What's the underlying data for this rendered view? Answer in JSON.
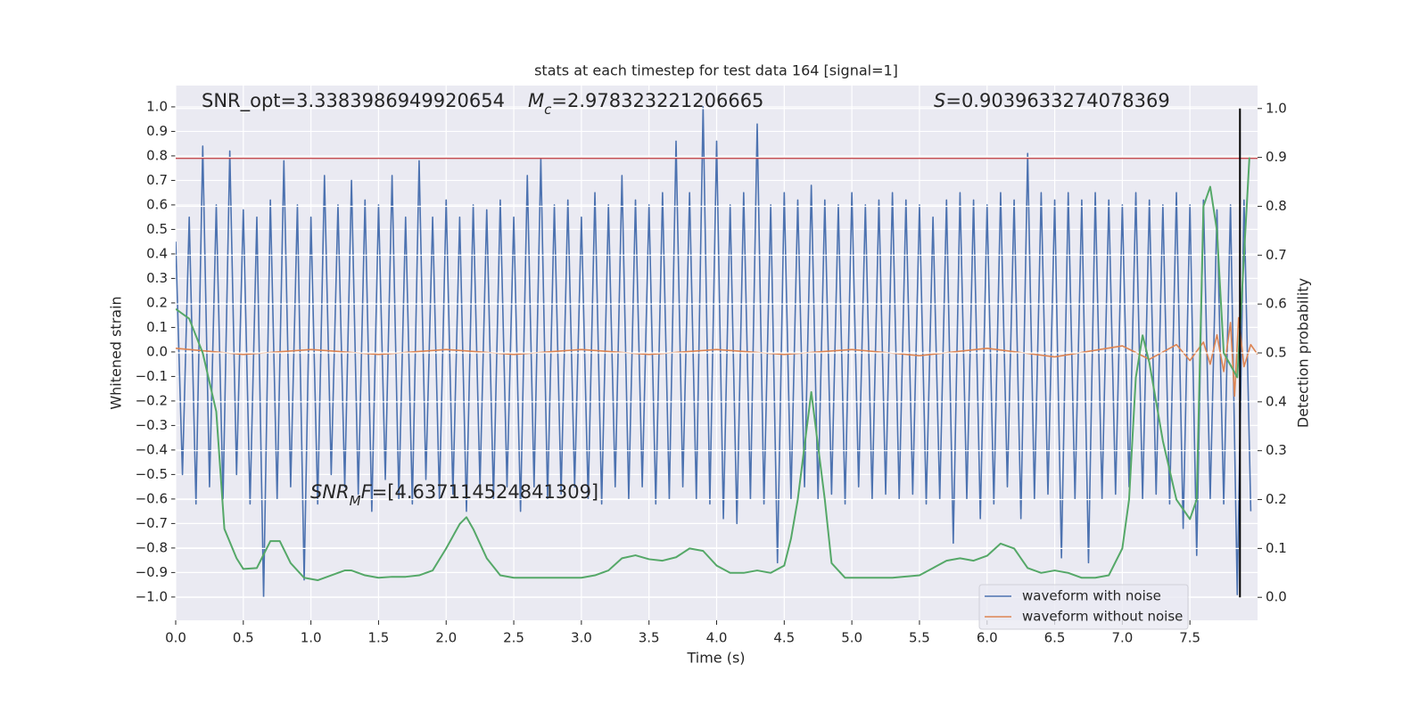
{
  "chart_data": {
    "type": "line",
    "title": "stats at each timestep for test data 164 [signal=1]",
    "xlabel": "Time (s)",
    "ylabel": "Whitened strain",
    "y2label": "Detection probability",
    "annotations": [
      {
        "parts": [
          {
            "text": "SNR_opt=3.3383986949920654"
          }
        ]
      },
      {
        "parts": [
          {
            "text": "M",
            "italic": true
          },
          {
            "text": "c",
            "italic": true,
            "sub": true
          },
          {
            "text": "=2.978323221206665"
          }
        ]
      },
      {
        "parts": [
          {
            "text": "S",
            "italic": true
          },
          {
            "text": "=0.9039633274078369"
          }
        ]
      },
      {
        "parts": [
          {
            "text": "SNR",
            "italic": true
          },
          {
            "text": "M",
            "italic": true,
            "sub": true
          },
          {
            "text": "F",
            "italic": true
          },
          {
            "text": "=[4.637114524841309]"
          }
        ]
      }
    ],
    "xlim": [
      0,
      8
    ],
    "ylim": [
      -1.095,
      1.087
    ],
    "y2lim": [
      -0.047,
      1.047
    ],
    "grid": true,
    "legend": "lower right",
    "xticks": [
      {
        "value": 0,
        "label": "0.0"
      },
      {
        "value": 0.5,
        "label": "0.5"
      },
      {
        "value": 1,
        "label": "1.0"
      },
      {
        "value": 1.5,
        "label": "1.5"
      },
      {
        "value": 2,
        "label": "2.0"
      },
      {
        "value": 2.5,
        "label": "2.5"
      },
      {
        "value": 3,
        "label": "3.0"
      },
      {
        "value": 3.5,
        "label": "3.5"
      },
      {
        "value": 4,
        "label": "4.0"
      },
      {
        "value": 4.5,
        "label": "4.5"
      },
      {
        "value": 5,
        "label": "5.0"
      },
      {
        "value": 5.5,
        "label": "5.5"
      },
      {
        "value": 6,
        "label": "6.0"
      },
      {
        "value": 6.5,
        "label": "6.5"
      },
      {
        "value": 7,
        "label": "7.0"
      },
      {
        "value": 7.5,
        "label": "7.5"
      }
    ],
    "yticks": [
      {
        "value": -1,
        "label": "−1.0"
      },
      {
        "value": -0.9,
        "label": "−0.9"
      },
      {
        "value": -0.8,
        "label": "−0.8"
      },
      {
        "value": -0.7,
        "label": "−0.7"
      },
      {
        "value": -0.6,
        "label": "−0.6"
      },
      {
        "value": -0.5,
        "label": "−0.5"
      },
      {
        "value": -0.4,
        "label": "−0.4"
      },
      {
        "value": -0.3,
        "label": "−0.3"
      },
      {
        "value": -0.2,
        "label": "−0.2"
      },
      {
        "value": -0.1,
        "label": "−0.1"
      },
      {
        "value": 0,
        "label": "0.0"
      },
      {
        "value": 0.1,
        "label": "0.1"
      },
      {
        "value": 0.2,
        "label": "0.2"
      },
      {
        "value": 0.3,
        "label": "0.3"
      },
      {
        "value": 0.4,
        "label": "0.4"
      },
      {
        "value": 0.5,
        "label": "0.5"
      },
      {
        "value": 0.6,
        "label": "0.6"
      },
      {
        "value": 0.7,
        "label": "0.7"
      },
      {
        "value": 0.8,
        "label": "0.8"
      },
      {
        "value": 0.9,
        "label": "0.9"
      },
      {
        "value": 1,
        "label": "1.0"
      }
    ],
    "y2ticks": [
      {
        "value": 0,
        "label": "0.0"
      },
      {
        "value": 0.1,
        "label": "0.1"
      },
      {
        "value": 0.2,
        "label": "0.2"
      },
      {
        "value": 0.3,
        "label": "0.3"
      },
      {
        "value": 0.4,
        "label": "0.4"
      },
      {
        "value": 0.5,
        "label": "0.5"
      },
      {
        "value": 0.6,
        "label": "0.6"
      },
      {
        "value": 0.7,
        "label": "0.7"
      },
      {
        "value": 0.8,
        "label": "0.8"
      },
      {
        "value": 0.9,
        "label": "0.9"
      },
      {
        "value": 1,
        "label": "1.0"
      }
    ],
    "series": [
      {
        "name": "waveform with noise",
        "color": "#4c72b0",
        "x": [
          0,
          0.05,
          0.1,
          0.15,
          0.2,
          0.25,
          0.3,
          0.35,
          0.4,
          0.45,
          0.5,
          0.55,
          0.6,
          0.65,
          0.7,
          0.75,
          0.8,
          0.85,
          0.9,
          0.95,
          1,
          1.05,
          1.1,
          1.15,
          1.2,
          1.25,
          1.3,
          1.35,
          1.4,
          1.45,
          1.5,
          1.55,
          1.6,
          1.65,
          1.7,
          1.75,
          1.8,
          1.85,
          1.9,
          1.95,
          2,
          2.05,
          2.1,
          2.15,
          2.2,
          2.25,
          2.3,
          2.35,
          2.4,
          2.45,
          2.5,
          2.55,
          2.6,
          2.65,
          2.7,
          2.75,
          2.8,
          2.85,
          2.9,
          2.95,
          3,
          3.05,
          3.1,
          3.15,
          3.2,
          3.25,
          3.3,
          3.35,
          3.4,
          3.45,
          3.5,
          3.55,
          3.6,
          3.65,
          3.7,
          3.75,
          3.8,
          3.85,
          3.9,
          3.95,
          4,
          4.05,
          4.1,
          4.15,
          4.2,
          4.25,
          4.3,
          4.35,
          4.4,
          4.45,
          4.5,
          4.55,
          4.6,
          4.65,
          4.7,
          4.75,
          4.8,
          4.85,
          4.9,
          4.95,
          5,
          5.05,
          5.1,
          5.15,
          5.2,
          5.25,
          5.3,
          5.35,
          5.4,
          5.45,
          5.5,
          5.55,
          5.6,
          5.65,
          5.7,
          5.75,
          5.8,
          5.85,
          5.9,
          5.95,
          6,
          6.05,
          6.1,
          6.15,
          6.2,
          6.25,
          6.3,
          6.35,
          6.4,
          6.45,
          6.5,
          6.55,
          6.6,
          6.65,
          6.7,
          6.75,
          6.8,
          6.85,
          6.9,
          6.95,
          7,
          7.05,
          7.1,
          7.15,
          7.2,
          7.25,
          7.3,
          7.35,
          7.4,
          7.45,
          7.5,
          7.55,
          7.6,
          7.65,
          7.7,
          7.75,
          7.8,
          7.85,
          7.9,
          7.95
        ],
        "values": [
          0.45,
          -0.5,
          0.55,
          -0.62,
          0.84,
          -0.55,
          0.6,
          -0.6,
          0.82,
          -0.5,
          0.58,
          -0.62,
          0.55,
          -1.0,
          0.62,
          -0.6,
          0.78,
          -0.55,
          0.6,
          -0.93,
          0.55,
          -0.62,
          0.72,
          -0.5,
          0.6,
          -0.55,
          0.7,
          -0.58,
          0.62,
          -0.65,
          0.6,
          -0.52,
          0.72,
          -0.6,
          0.55,
          -0.62,
          0.78,
          -0.52,
          0.55,
          -0.6,
          0.62,
          -0.58,
          0.55,
          -0.65,
          0.6,
          -0.55,
          0.58,
          -0.6,
          0.62,
          -0.55,
          0.55,
          -0.65,
          0.72,
          -0.55,
          0.79,
          -0.6,
          0.6,
          -0.58,
          0.62,
          -0.55,
          0.55,
          -0.6,
          0.65,
          -0.62,
          0.6,
          -0.55,
          0.72,
          -0.6,
          0.62,
          -0.55,
          0.6,
          -0.62,
          0.65,
          -0.6,
          0.86,
          -0.55,
          0.65,
          -0.6,
          1.0,
          -0.62,
          0.86,
          -0.68,
          0.6,
          -0.7,
          0.65,
          -0.6,
          0.93,
          -0.62,
          0.6,
          -0.86,
          0.65,
          -0.6,
          0.62,
          -0.55,
          0.68,
          -0.6,
          0.62,
          -0.58,
          0.6,
          -0.62,
          0.65,
          -0.55,
          0.6,
          -0.6,
          0.62,
          -0.58,
          0.65,
          -0.6,
          0.62,
          -0.58,
          0.6,
          -0.62,
          0.55,
          -0.6,
          0.62,
          -0.78,
          0.65,
          -0.6,
          0.62,
          -0.68,
          0.6,
          -0.62,
          0.65,
          -0.55,
          0.62,
          -0.68,
          0.81,
          -0.6,
          0.65,
          -0.58,
          0.62,
          -0.84,
          0.65,
          -0.6,
          0.62,
          -0.86,
          0.65,
          -0.6,
          0.62,
          -0.58,
          0.6,
          -0.55,
          0.65,
          -0.6,
          0.62,
          -0.58,
          0.6,
          -0.62,
          0.65,
          -0.72,
          0.6,
          -0.83,
          0.62,
          -0.6,
          0.58,
          -0.62,
          0.6,
          -0.99,
          0.62,
          -0.65
        ]
      },
      {
        "name": "waveform without noise",
        "color": "#dd8452",
        "x": [
          0,
          0.5,
          1,
          1.5,
          2,
          2.5,
          3,
          3.5,
          4,
          4.5,
          5,
          5.5,
          6,
          6.5,
          7,
          7.2,
          7.4,
          7.5,
          7.6,
          7.65,
          7.7,
          7.75,
          7.8,
          7.83,
          7.86,
          7.9,
          7.95,
          8
        ],
        "values": [
          0.015,
          -0.01,
          0.01,
          -0.01,
          0.01,
          -0.01,
          0.01,
          -0.01,
          0.01,
          -0.01,
          0.01,
          -0.015,
          0.015,
          -0.02,
          0.025,
          -0.03,
          0.03,
          -0.035,
          0.04,
          -0.05,
          0.07,
          -0.08,
          0.12,
          -0.18,
          0.14,
          -0.06,
          0.03,
          -0.01
        ]
      },
      {
        "color": "#55a868",
        "axis": "y2",
        "x": [
          0,
          0.1,
          0.2,
          0.3,
          0.36,
          0.45,
          0.5,
          0.6,
          0.7,
          0.77,
          0.85,
          0.95,
          1.05,
          1.15,
          1.25,
          1.3,
          1.4,
          1.5,
          1.6,
          1.7,
          1.8,
          1.9,
          2,
          2.1,
          2.15,
          2.2,
          2.3,
          2.4,
          2.5,
          2.8,
          3,
          3.1,
          3.2,
          3.3,
          3.4,
          3.5,
          3.6,
          3.7,
          3.8,
          3.9,
          4,
          4.1,
          4.2,
          4.3,
          4.4,
          4.5,
          4.55,
          4.6,
          4.7,
          4.8,
          4.85,
          4.95,
          5.1,
          5.3,
          5.5,
          5.6,
          5.7,
          5.8,
          5.9,
          6,
          6.1,
          6.2,
          6.3,
          6.4,
          6.5,
          6.6,
          6.7,
          6.8,
          6.9,
          7,
          7.05,
          7.1,
          7.15,
          7.2,
          7.3,
          7.4,
          7.5,
          7.55,
          7.6,
          7.65,
          7.7,
          7.75,
          7.85,
          7.9,
          7.94
        ],
        "values": [
          0.59,
          0.57,
          0.5,
          0.38,
          0.14,
          0.08,
          0.058,
          0.06,
          0.115,
          0.115,
          0.07,
          0.04,
          0.035,
          0.045,
          0.055,
          0.055,
          0.045,
          0.04,
          0.042,
          0.042,
          0.045,
          0.055,
          0.1,
          0.15,
          0.164,
          0.14,
          0.08,
          0.045,
          0.04,
          0.04,
          0.04,
          0.045,
          0.055,
          0.08,
          0.086,
          0.078,
          0.075,
          0.082,
          0.1,
          0.095,
          0.065,
          0.05,
          0.05,
          0.055,
          0.05,
          0.065,
          0.12,
          0.2,
          0.42,
          0.2,
          0.07,
          0.04,
          0.04,
          0.04,
          0.045,
          0.06,
          0.075,
          0.08,
          0.075,
          0.085,
          0.11,
          0.1,
          0.06,
          0.05,
          0.055,
          0.05,
          0.04,
          0.04,
          0.045,
          0.1,
          0.2,
          0.45,
          0.536,
          0.48,
          0.32,
          0.2,
          0.16,
          0.2,
          0.8,
          0.84,
          0.75,
          0.5,
          0.45,
          0.7,
          0.9
        ]
      }
    ],
    "hline": {
      "value": 0.79,
      "color": "#c44e52"
    },
    "vline": {
      "x": 7.87,
      "y2range": [
        0,
        1
      ],
      "color": "#000000"
    }
  }
}
